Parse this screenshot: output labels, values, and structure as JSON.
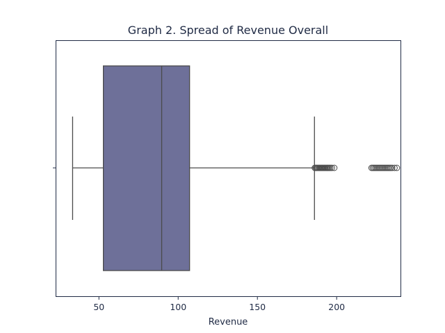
{
  "chart_data": {
    "type": "box",
    "title": "Graph 2. Spread of Revenue Overall",
    "xlabel": "Revenue",
    "ylabel": "",
    "xlim": [
      22.9,
      240.5
    ],
    "xticks": [
      50,
      100,
      150,
      200
    ],
    "box": {
      "whisker_low": 33.4,
      "q1": 52.8,
      "median": 89.6,
      "q3": 107.2,
      "whisker_high": 186.0
    },
    "outliers": [
      186.2,
      186.8,
      187.4,
      188.0,
      188.6,
      189.2,
      189.8,
      190.4,
      191.0,
      191.6,
      192.2,
      192.8,
      193.4,
      194.0,
      194.6,
      195.2,
      196.0,
      197.0,
      198.5,
      222.0,
      222.8,
      223.6,
      224.4,
      225.2,
      226.0,
      226.8,
      227.6,
      228.4,
      229.2,
      230.0,
      230.8,
      231.6,
      232.4,
      233.2,
      234.0,
      235.0,
      236.5,
      238.0
    ],
    "colors": {
      "box_fill": "#6e7099",
      "lines": "#4a4a4a",
      "frame": "#1f2a44"
    },
    "grid": false,
    "legend": "none"
  }
}
